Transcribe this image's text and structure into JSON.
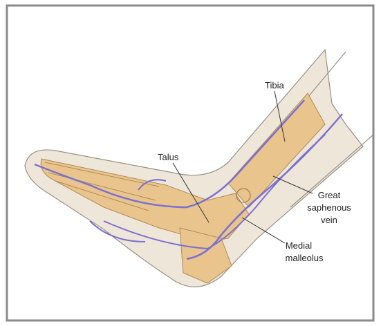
{
  "labels": [
    {
      "lines": [
        "Tibia"
      ]
    },
    {
      "lines": [
        "Talus"
      ]
    },
    {
      "lines": [
        "Great",
        "saphenous",
        "vein"
      ]
    },
    {
      "lines": [
        "Medial",
        "malleolus"
      ]
    }
  ]
}
